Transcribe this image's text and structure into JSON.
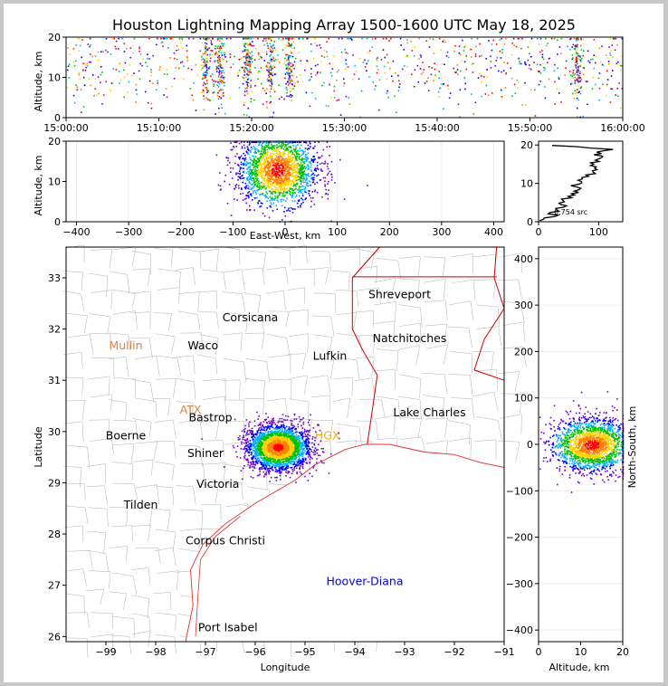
{
  "title": "Houston Lightning Mapping Array 1500-1600 UTC May 18, 2025",
  "colors": {
    "border_state": "#cc0000",
    "county": "#b0b0b0",
    "coast": "#e03030",
    "density": [
      "#7000d0",
      "#0000ff",
      "#00b0ff",
      "#00c000",
      "#ffd000",
      "#ff8000",
      "#ff0000"
    ]
  },
  "chart_data": [
    {
      "id": "time-altitude",
      "type": "scatter",
      "xlabel": "",
      "ylabel": "Altitude, km",
      "xlim": [
        "15:00:00",
        "16:00:00"
      ],
      "ylim": [
        0,
        20
      ],
      "x_ticks": [
        "15:00:00",
        "15:10:00",
        "15:20:00",
        "15:30:00",
        "15:40:00",
        "15:50:00",
        "16:00:00"
      ],
      "y_ticks": [
        "0",
        "10",
        "20"
      ]
    },
    {
      "id": "ew-altitude",
      "type": "scatter",
      "xlabel": "East-West, km",
      "ylabel": "Altitude, km",
      "xlim": [
        -420,
        420
      ],
      "ylim": [
        0,
        20
      ],
      "x_ticks": [
        "−400",
        "−300",
        "−200",
        "−100",
        "0",
        "100",
        "200",
        "300",
        "400"
      ],
      "y_ticks": [
        "0",
        "10",
        "20"
      ]
    },
    {
      "id": "altitude-histogram",
      "type": "line",
      "xlabel": "",
      "ylabel": "",
      "xlim": [
        0,
        140
      ],
      "ylim": [
        0,
        21
      ],
      "x_ticks": [
        "0",
        "100"
      ],
      "y_ticks": [
        "0",
        "10",
        "20"
      ],
      "annotation": "6,754 src",
      "peak_count_at_altitude": [
        [
          0.5,
          15
        ],
        [
          2,
          25
        ],
        [
          4,
          35
        ],
        [
          6,
          45
        ],
        [
          8,
          60
        ],
        [
          10,
          65
        ],
        [
          12,
          85
        ],
        [
          14,
          95
        ],
        [
          16,
          95
        ],
        [
          18,
          105
        ],
        [
          19,
          120
        ],
        [
          20,
          5
        ]
      ]
    },
    {
      "id": "plan-view-map",
      "type": "scatter",
      "xlabel": "Longitude",
      "ylabel": "Latitude",
      "xlim": [
        -99.8,
        -91
      ],
      "ylim": [
        25.9,
        33.6
      ],
      "x_ticks": [
        "−99",
        "−98",
        "−97",
        "−96",
        "−95",
        "−94",
        "−93",
        "−92",
        "−91"
      ],
      "y_ticks": [
        "26",
        "27",
        "28",
        "29",
        "30",
        "31",
        "32",
        "33"
      ],
      "storm_center": {
        "lon": -95.55,
        "lat": 29.7
      },
      "places": [
        {
          "name": "Shreveport",
          "lon": -93.1,
          "lat": 32.6,
          "color": "#000000"
        },
        {
          "name": "Corsicana",
          "lon": -96.1,
          "lat": 32.15,
          "color": "#000000"
        },
        {
          "name": "Natchitoches",
          "lon": -92.9,
          "lat": 31.75,
          "color": "#000000"
        },
        {
          "name": "Mullin",
          "lon": -98.6,
          "lat": 31.6,
          "color": "#e08040"
        },
        {
          "name": "Waco",
          "lon": -97.05,
          "lat": 31.6,
          "color": "#000000"
        },
        {
          "name": "Lufkin",
          "lon": -94.5,
          "lat": 31.4,
          "color": "#000000"
        },
        {
          "name": "ATX",
          "lon": -97.3,
          "lat": 30.35,
          "color": "#e08040"
        },
        {
          "name": "Bastrop",
          "lon": -96.9,
          "lat": 30.2,
          "color": "#000000"
        },
        {
          "name": "Lake Charles",
          "lon": -92.5,
          "lat": 30.3,
          "color": "#000000"
        },
        {
          "name": "Boerne",
          "lon": -98.6,
          "lat": 29.85,
          "color": "#000000"
        },
        {
          "name": "HGX",
          "lon": -94.55,
          "lat": 29.85,
          "color": "#ffa500"
        },
        {
          "name": "Shiner",
          "lon": -97.0,
          "lat": 29.5,
          "color": "#000000"
        },
        {
          "name": "Victoria",
          "lon": -96.75,
          "lat": 28.9,
          "color": "#000000"
        },
        {
          "name": "Tilden",
          "lon": -98.3,
          "lat": 28.5,
          "color": "#000000"
        },
        {
          "name": "Corpus Christi",
          "lon": -96.6,
          "lat": 27.8,
          "color": "#000000"
        },
        {
          "name": "Hoover-Diana",
          "lon": -93.8,
          "lat": 27.0,
          "color": "#0000dd"
        },
        {
          "name": "Port Isabel",
          "lon": -96.55,
          "lat": 26.1,
          "color": "#000000"
        }
      ]
    },
    {
      "id": "altitude-ns",
      "type": "scatter",
      "xlabel": "Altitude, km",
      "ylabel": "North-South, km",
      "xlim": [
        0,
        20
      ],
      "ylim": [
        -425,
        425
      ],
      "x_ticks": [
        "0",
        "10",
        "20"
      ],
      "y_ticks": [
        "−400",
        "−300",
        "−200",
        "−100",
        "0",
        "100",
        "200",
        "300",
        "400"
      ]
    }
  ]
}
